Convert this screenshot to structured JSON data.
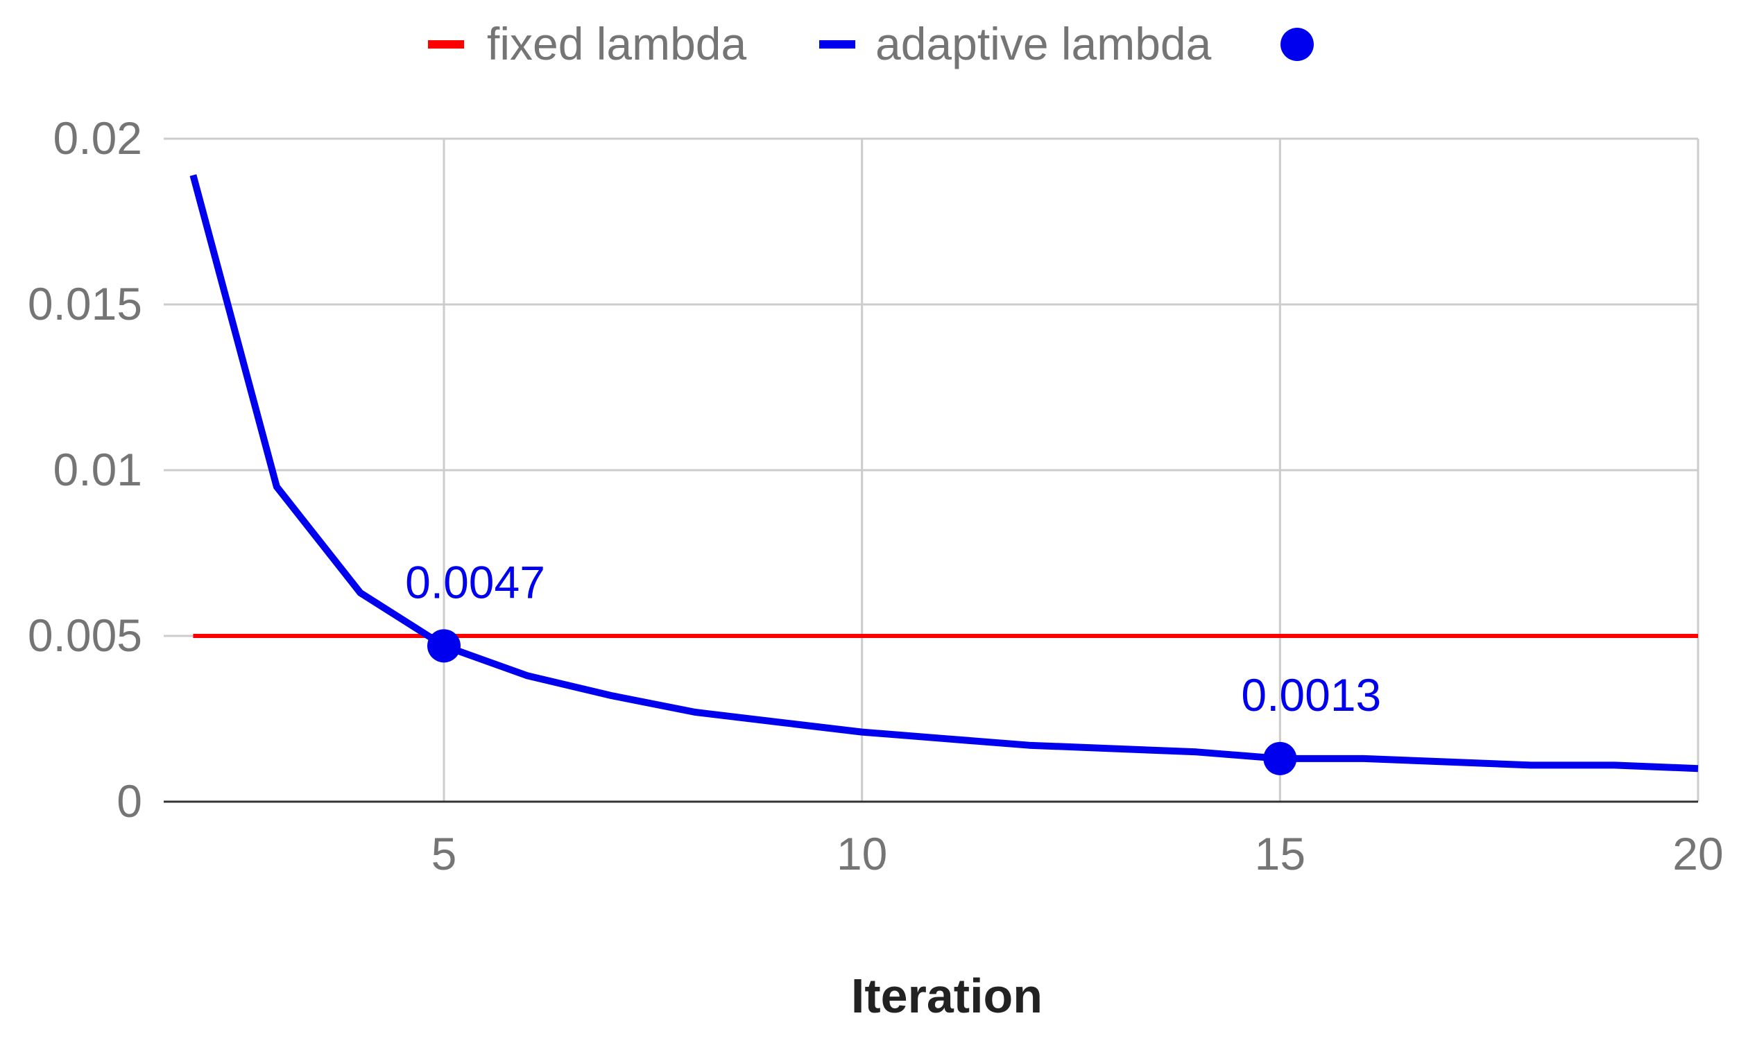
{
  "chart_data": {
    "type": "line",
    "xlabel": "Iteration",
    "ylabel": "",
    "xlim": [
      2,
      20
    ],
    "ylim": [
      0,
      0.02
    ],
    "x_ticks": [
      5,
      10,
      15,
      20
    ],
    "y_ticks": [
      0,
      0.005,
      0.01,
      0.015,
      0.02
    ],
    "y_tick_labels": [
      "0",
      "0.005",
      "0.01",
      "0.015",
      "0.02"
    ],
    "x_tick_labels": [
      "5",
      "10",
      "15",
      "20"
    ],
    "grid": true,
    "legend_position": "top",
    "legend": [
      {
        "label": "fixed lambda",
        "marker": "line",
        "color": "#ff0000"
      },
      {
        "label": "adaptive lambda",
        "marker": "line",
        "color": "#0000ee"
      },
      {
        "label": "",
        "marker": "dot",
        "color": "#0000ee"
      }
    ],
    "series": [
      {
        "name": "fixed lambda",
        "color": "#ff0000",
        "x": [
          2,
          20
        ],
        "y": [
          0.005,
          0.005
        ]
      },
      {
        "name": "adaptive lambda",
        "color": "#0000ee",
        "x": [
          2,
          3,
          4,
          5,
          6,
          7,
          8,
          9,
          10,
          11,
          12,
          13,
          14,
          15,
          16,
          17,
          18,
          19,
          20
        ],
        "y": [
          0.0189,
          0.0095,
          0.0063,
          0.0047,
          0.0038,
          0.0032,
          0.0027,
          0.0024,
          0.0021,
          0.0019,
          0.0017,
          0.0016,
          0.0015,
          0.0013,
          0.0013,
          0.0012,
          0.0011,
          0.0011,
          0.001
        ]
      }
    ],
    "highlighted_points": [
      {
        "x": 5,
        "y": 0.0047,
        "label": "0.0047"
      },
      {
        "x": 15,
        "y": 0.0013,
        "label": "0.0013"
      }
    ]
  }
}
